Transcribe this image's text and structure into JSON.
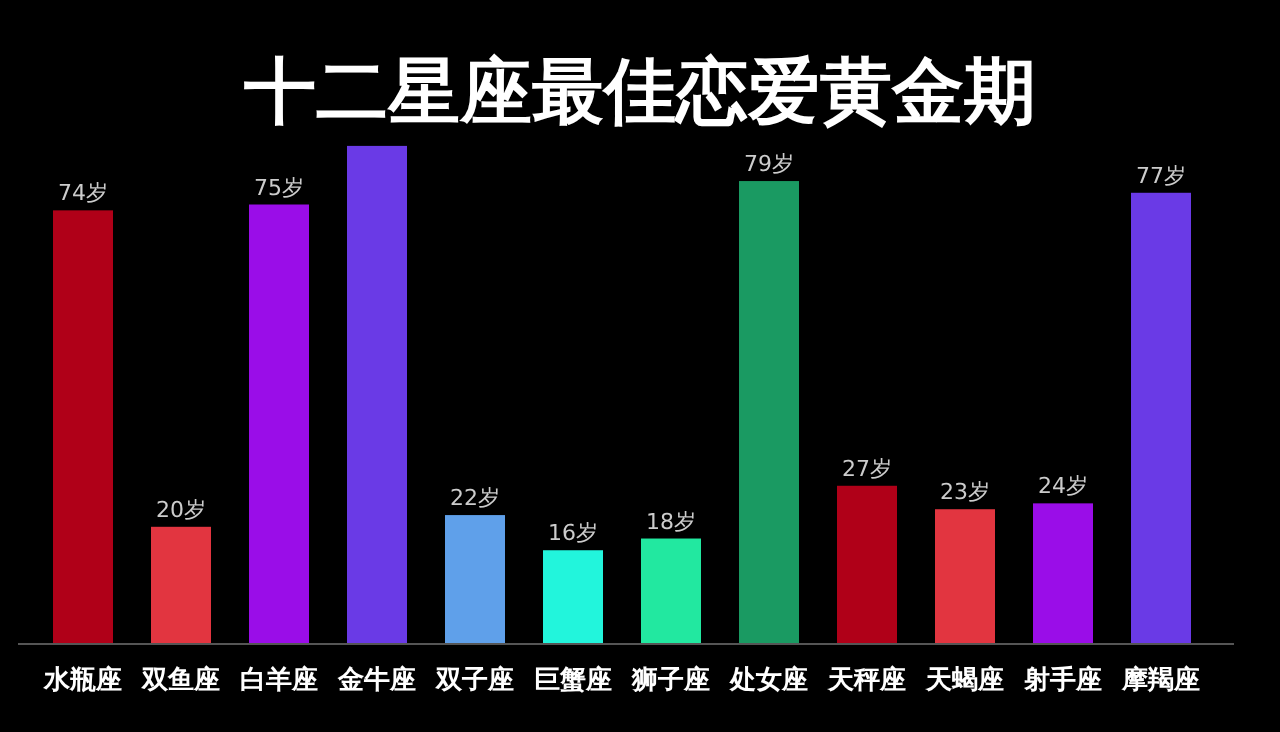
{
  "chart_data": {
    "type": "bar",
    "title": "十二星座最佳恋爱黄金期",
    "categories": [
      "水瓶座",
      "双鱼座",
      "白羊座",
      "金牛座",
      "双子座",
      "巨蟹座",
      "狮子座",
      "处女座",
      "天秤座",
      "天蝎座",
      "射手座",
      "摩羯座"
    ],
    "values": [
      74,
      20,
      75,
      85,
      22,
      16,
      18,
      79,
      27,
      23,
      24,
      77
    ],
    "value_labels": [
      "74岁",
      "20岁",
      "75岁",
      null,
      "22岁",
      "16岁",
      "18岁",
      "79岁",
      "27岁",
      "23岁",
      "24岁",
      "77岁"
    ],
    "colors": [
      "#b00018",
      "#e23540",
      "#9a0de8",
      "#6a3ae6",
      "#5fa0ea",
      "#22f5dc",
      "#22e8a0",
      "#1a9a62",
      "#b00018",
      "#e23540",
      "#9a0de8",
      "#6a3ae6"
    ],
    "data_labels": false
  }
}
